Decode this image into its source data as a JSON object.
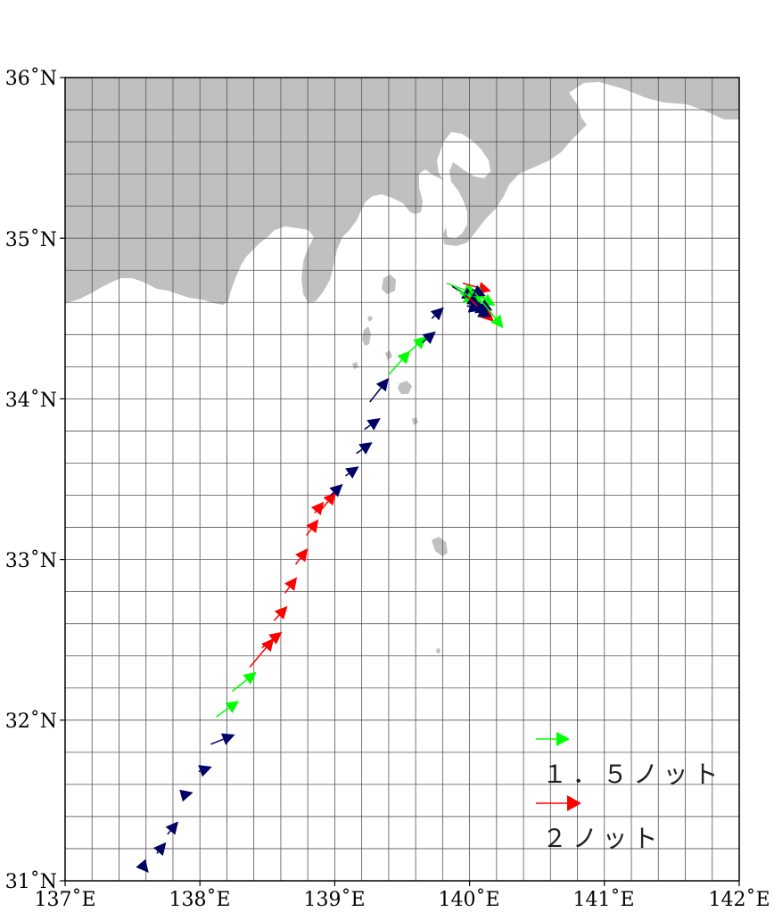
{
  "map": {
    "lon_range": [
      137,
      142
    ],
    "lat_range": [
      31,
      36
    ],
    "grid_step_deg": 0.2,
    "grid": true,
    "land_color": "#c0c0c0",
    "lon_ticks": [
      {
        "value": 137,
        "label": "137˚E"
      },
      {
        "value": 138,
        "label": "138˚E"
      },
      {
        "value": 139,
        "label": "139˚E"
      },
      {
        "value": 140,
        "label": "140˚E"
      },
      {
        "value": 141,
        "label": "141˚E"
      },
      {
        "value": 142,
        "label": "142˚E"
      }
    ],
    "lat_ticks": [
      {
        "value": 31,
        "label": "31˚N"
      },
      {
        "value": 32,
        "label": "32˚N"
      },
      {
        "value": 33,
        "label": "33˚N"
      },
      {
        "value": 34,
        "label": "34˚N"
      },
      {
        "value": 35,
        "label": "35˚N"
      },
      {
        "value": 36,
        "label": "36˚N"
      }
    ]
  },
  "legend": {
    "items": [
      {
        "label": "１．５ノット",
        "color": "#00ff00"
      },
      {
        "label": "２ノット",
        "color": "#ff0000"
      }
    ]
  },
  "drift_vectors": {
    "colors": {
      "navy": "#000066",
      "green": "#00ff00",
      "red": "#ff0000"
    },
    "items": [
      {
        "lon": 137.57,
        "lat": 31.1,
        "u": 0.05,
        "v": -0.05,
        "c": "navy"
      },
      {
        "lon": 137.68,
        "lat": 31.17,
        "u": 0.07,
        "v": 0.07,
        "c": "navy"
      },
      {
        "lon": 137.76,
        "lat": 31.29,
        "u": 0.08,
        "v": 0.08,
        "c": "navy"
      },
      {
        "lon": 137.86,
        "lat": 31.53,
        "u": 0.09,
        "v": 0.02,
        "c": "navy"
      },
      {
        "lon": 137.99,
        "lat": 31.68,
        "u": 0.1,
        "v": 0.03,
        "c": "navy"
      },
      {
        "lon": 138.08,
        "lat": 31.85,
        "u": 0.18,
        "v": 0.06,
        "c": "navy"
      },
      {
        "lon": 138.12,
        "lat": 32.02,
        "u": 0.17,
        "v": 0.1,
        "c": "green"
      },
      {
        "lon": 138.24,
        "lat": 32.18,
        "u": 0.18,
        "v": 0.12,
        "c": "green"
      },
      {
        "lon": 138.37,
        "lat": 32.33,
        "u": 0.18,
        "v": 0.18,
        "c": "red"
      },
      {
        "lon": 138.46,
        "lat": 32.45,
        "u": 0.15,
        "v": 0.1,
        "c": "red"
      },
      {
        "lon": 138.55,
        "lat": 32.62,
        "u": 0.1,
        "v": 0.09,
        "c": "red"
      },
      {
        "lon": 138.63,
        "lat": 32.79,
        "u": 0.09,
        "v": 0.1,
        "c": "red"
      },
      {
        "lon": 138.71,
        "lat": 32.97,
        "u": 0.09,
        "v": 0.1,
        "c": "red"
      },
      {
        "lon": 138.79,
        "lat": 33.15,
        "u": 0.09,
        "v": 0.1,
        "c": "red"
      },
      {
        "lon": 138.85,
        "lat": 33.29,
        "u": 0.07,
        "v": 0.07,
        "c": "red"
      },
      {
        "lon": 138.9,
        "lat": 33.31,
        "u": 0.11,
        "v": 0.11,
        "c": "red"
      },
      {
        "lon": 138.97,
        "lat": 33.4,
        "u": 0.09,
        "v": 0.07,
        "c": "navy"
      },
      {
        "lon": 139.08,
        "lat": 33.52,
        "u": 0.1,
        "v": 0.06,
        "c": "navy"
      },
      {
        "lon": 139.16,
        "lat": 33.66,
        "u": 0.12,
        "v": 0.07,
        "c": "navy"
      },
      {
        "lon": 139.22,
        "lat": 33.81,
        "u": 0.12,
        "v": 0.07,
        "c": "navy"
      },
      {
        "lon": 139.26,
        "lat": 33.98,
        "u": 0.14,
        "v": 0.15,
        "c": "navy"
      },
      {
        "lon": 139.4,
        "lat": 34.15,
        "u": 0.16,
        "v": 0.15,
        "c": "green"
      },
      {
        "lon": 139.55,
        "lat": 34.29,
        "u": 0.13,
        "v": 0.1,
        "c": "green"
      },
      {
        "lon": 139.65,
        "lat": 34.35,
        "u": 0.1,
        "v": 0.07,
        "c": "navy"
      },
      {
        "lon": 139.72,
        "lat": 34.5,
        "u": 0.09,
        "v": 0.07,
        "c": "navy"
      },
      {
        "lon": 139.83,
        "lat": 34.72,
        "u": 0.22,
        "v": -0.07,
        "c": "green"
      },
      {
        "lon": 139.87,
        "lat": 34.7,
        "u": 0.17,
        "v": -0.08,
        "c": "navy"
      },
      {
        "lon": 139.9,
        "lat": 34.68,
        "u": 0.2,
        "v": -0.08,
        "c": "green"
      },
      {
        "lon": 139.93,
        "lat": 34.66,
        "u": 0.12,
        "v": -0.07,
        "c": "green"
      },
      {
        "lon": 139.95,
        "lat": 34.72,
        "u": 0.21,
        "v": -0.05,
        "c": "red"
      },
      {
        "lon": 139.97,
        "lat": 34.64,
        "u": 0.11,
        "v": -0.06,
        "c": "navy"
      },
      {
        "lon": 139.98,
        "lat": 34.58,
        "u": 0.11,
        "v": -0.03,
        "c": "navy"
      },
      {
        "lon": 140.0,
        "lat": 34.7,
        "u": 0.12,
        "v": -0.08,
        "c": "green"
      },
      {
        "lon": 140.03,
        "lat": 34.66,
        "u": 0.16,
        "v": -0.08,
        "c": "green"
      },
      {
        "lon": 140.05,
        "lat": 34.6,
        "u": 0.12,
        "v": -0.05,
        "c": "navy"
      },
      {
        "lon": 140.02,
        "lat": 34.68,
        "u": 0.1,
        "v": -0.04,
        "c": "navy"
      },
      {
        "lon": 139.98,
        "lat": 34.64,
        "u": 0.2,
        "v": -0.16,
        "c": "red"
      },
      {
        "lon": 140.06,
        "lat": 34.55,
        "u": 0.1,
        "v": -0.04,
        "c": "navy"
      },
      {
        "lon": 140.04,
        "lat": 34.66,
        "u": 0.21,
        "v": -0.22,
        "c": "green"
      },
      {
        "lon": 140.08,
        "lat": 34.56,
        "u": 0.06,
        "v": -0.02,
        "c": "navy"
      }
    ]
  }
}
